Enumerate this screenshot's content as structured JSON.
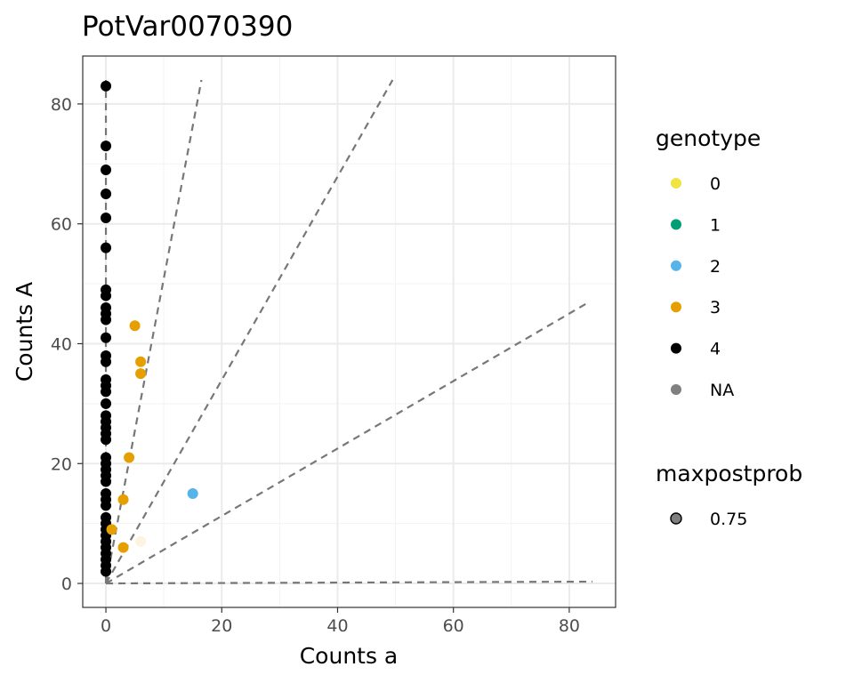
{
  "chart_data": {
    "type": "scatter",
    "title": "PotVar0070390",
    "xlabel": "Counts a",
    "ylabel": "Counts A",
    "xlim": [
      -4,
      88
    ],
    "ylim": [
      -4,
      88
    ],
    "x_ticks": [
      0,
      20,
      40,
      60,
      80
    ],
    "y_ticks": [
      0,
      20,
      40,
      60,
      80
    ],
    "grid": true,
    "legend_position": "right",
    "reference_lines": [
      {
        "from": [
          0,
          0
        ],
        "to": [
          16.5,
          84
        ]
      },
      {
        "from": [
          0,
          0
        ],
        "to": [
          49.5,
          84
        ]
      },
      {
        "from": [
          0,
          0
        ],
        "to": [
          83.5,
          47
        ]
      },
      {
        "from": [
          0,
          0
        ],
        "to": [
          84,
          0.3
        ]
      },
      {
        "from": [
          0,
          0
        ],
        "to": [
          0,
          84
        ]
      }
    ],
    "genotype_colors": {
      "0": "#F0E442",
      "1": "#009E73",
      "2": "#56B4E9",
      "3": "#E69F00",
      "4": "#000000",
      "NA": "#808080"
    },
    "series": [
      {
        "genotype": "4",
        "points": [
          [
            0,
            83
          ],
          [
            0,
            73
          ],
          [
            0,
            69
          ],
          [
            0,
            65
          ],
          [
            0,
            61
          ],
          [
            0,
            56
          ],
          [
            0,
            49
          ],
          [
            0,
            48
          ],
          [
            0,
            46
          ],
          [
            0,
            45
          ],
          [
            0,
            44
          ],
          [
            0,
            41
          ],
          [
            0,
            38
          ],
          [
            0,
            37
          ],
          [
            0,
            34
          ],
          [
            0,
            33
          ],
          [
            0,
            32
          ],
          [
            0,
            30
          ],
          [
            0,
            28
          ],
          [
            0,
            27
          ],
          [
            0,
            26
          ],
          [
            0,
            25
          ],
          [
            0,
            24
          ],
          [
            0,
            21
          ],
          [
            0,
            20
          ],
          [
            0,
            19
          ],
          [
            0,
            18
          ],
          [
            0,
            17
          ],
          [
            0,
            15
          ],
          [
            0,
            14
          ],
          [
            0,
            13
          ],
          [
            0,
            11
          ],
          [
            0,
            10
          ],
          [
            0,
            9
          ],
          [
            0,
            8
          ],
          [
            0,
            7
          ],
          [
            0,
            6
          ],
          [
            0,
            5
          ],
          [
            0,
            4
          ],
          [
            0,
            3
          ],
          [
            0,
            2
          ]
        ]
      },
      {
        "genotype": "3",
        "points": [
          [
            5,
            43
          ],
          [
            6,
            37
          ],
          [
            6,
            35
          ],
          [
            4,
            21
          ],
          [
            3,
            14
          ],
          [
            1,
            9
          ],
          [
            3,
            6
          ],
          [
            6,
            7
          ]
        ],
        "alpha": [
          1,
          1,
          1,
          1,
          1,
          1,
          1,
          0.12
        ]
      },
      {
        "genotype": "2",
        "points": [
          [
            15,
            15
          ]
        ]
      }
    ],
    "legend": {
      "genotype": {
        "title": "genotype",
        "entries": [
          "0",
          "1",
          "2",
          "3",
          "4",
          "NA"
        ]
      },
      "maxpostprob": {
        "title": "maxpostprob",
        "entries": [
          "0.75"
        ]
      }
    }
  }
}
